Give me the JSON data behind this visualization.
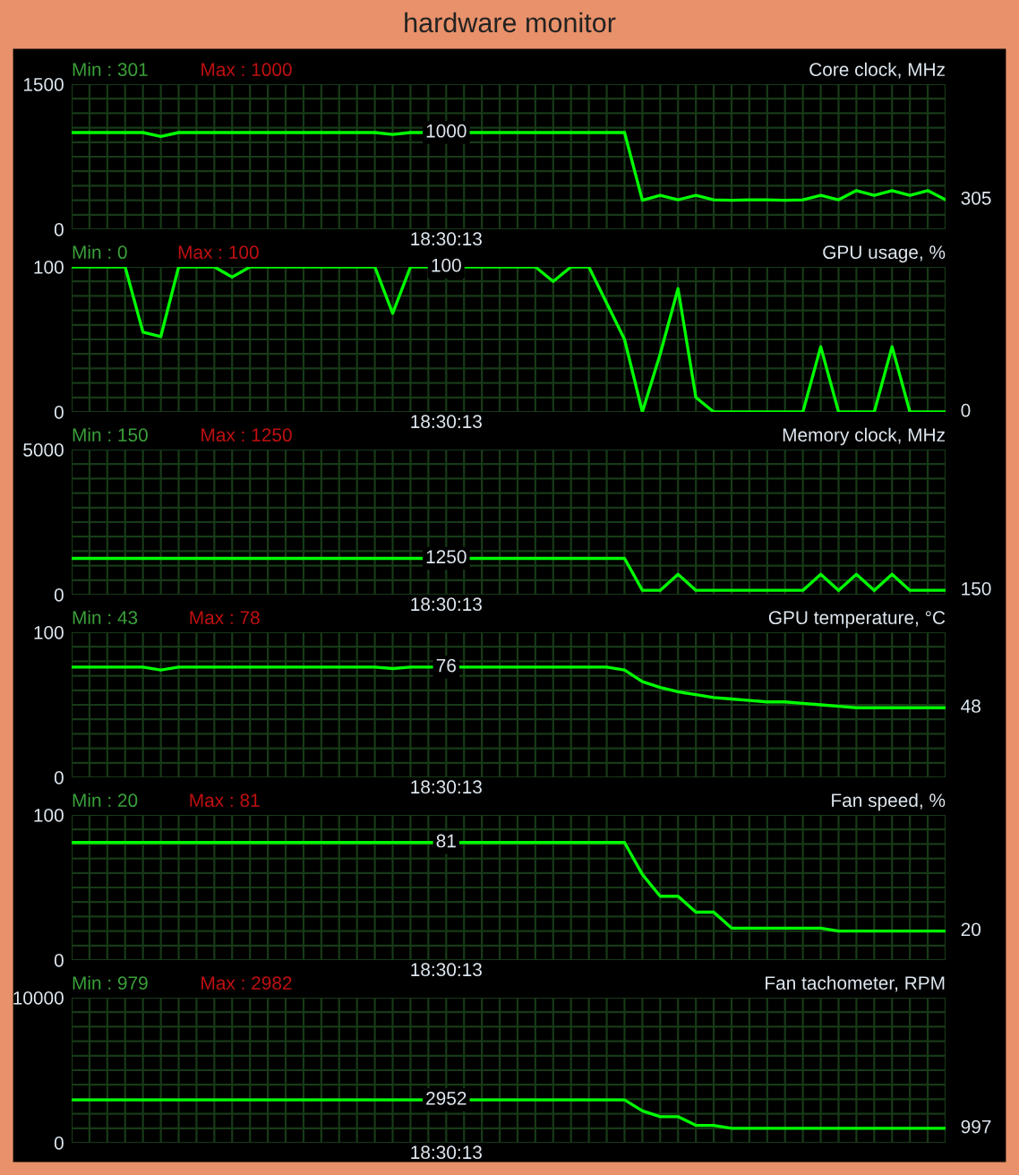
{
  "chart_data": [
    {
      "type": "line",
      "subtitle": "hardware monitor",
      "title": "Core clock, MHz",
      "annotations": [
        "Min : 301",
        "Max : 1000"
      ],
      "categories": [
        null,
        null,
        null,
        null,
        null,
        null,
        null,
        null,
        null,
        null,
        null,
        null,
        null,
        null,
        null,
        null,
        null,
        null,
        null,
        null,
        null,
        "18:30:13",
        null,
        null,
        null,
        null,
        null,
        null,
        null,
        null,
        null,
        null,
        null,
        null,
        null,
        null,
        null,
        null,
        null,
        null,
        null,
        null,
        null,
        null,
        null,
        null,
        null,
        null,
        null,
        null
      ],
      "series": [
        {
          "color": "#00ff00",
          "values": [
            1000,
            1000,
            1000,
            1000,
            1000,
            960,
            1000,
            1000,
            1000,
            1000,
            1000,
            1000,
            1000,
            1000,
            1000,
            1000,
            1000,
            1000,
            980,
            1000,
            1000,
            1000,
            1000,
            1000,
            1000,
            1000,
            1000,
            1000,
            1000,
            1000,
            1000,
            1000,
            300,
            350,
            305,
            350,
            305,
            300,
            305,
            305,
            300,
            305,
            350,
            305,
            400,
            350,
            400,
            350,
            400,
            305
          ],
          "value_labels": [
            null,
            null,
            null,
            null,
            null,
            null,
            null,
            null,
            null,
            null,
            null,
            null,
            null,
            null,
            null,
            null,
            null,
            null,
            null,
            null,
            null,
            "1000",
            null,
            null,
            null,
            null,
            null,
            null,
            null,
            null,
            null,
            null,
            null,
            null,
            null,
            null,
            null,
            null,
            null,
            null,
            null,
            null,
            null,
            null,
            null,
            null,
            null,
            null,
            null,
            "305"
          ]
        }
      ],
      "ylim": [
        0,
        1500
      ],
      "yticks": [
        0,
        {
          "value": 150,
          "label": null
        },
        {
          "value": 300,
          "label": null
        },
        {
          "value": 450,
          "label": null
        },
        {
          "value": 600,
          "label": null
        },
        {
          "value": 750,
          "label": null
        },
        {
          "value": 900,
          "label": null
        },
        {
          "value": 1050,
          "label": null
        },
        {
          "value": 1200,
          "label": null
        },
        {
          "value": 1350,
          "label": null
        },
        1500
      ],
      "grid": true
    },
    {
      "type": "line",
      "title": "GPU usage, %",
      "annotations": [
        "Min : 0",
        "Max : 100"
      ],
      "categories": [
        null,
        null,
        null,
        null,
        null,
        null,
        null,
        null,
        null,
        null,
        null,
        null,
        null,
        null,
        null,
        null,
        null,
        null,
        null,
        null,
        null,
        "18:30:13",
        null,
        null,
        null,
        null,
        null,
        null,
        null,
        null,
        null,
        null,
        null,
        null,
        null,
        null,
        null,
        null,
        null,
        null,
        null,
        null,
        null,
        null,
        null,
        null,
        null,
        null,
        null,
        null
      ],
      "series": [
        {
          "color": "#00ff00",
          "values": [
            100,
            100,
            100,
            100,
            55,
            52,
            100,
            100,
            100,
            93,
            100,
            100,
            100,
            100,
            100,
            100,
            100,
            100,
            68,
            100,
            100,
            100,
            100,
            100,
            100,
            100,
            100,
            90,
            100,
            100,
            75,
            50,
            0,
            40,
            85,
            10,
            0,
            0,
            0,
            0,
            0,
            0,
            45,
            0,
            0,
            0,
            45,
            0,
            0,
            0
          ],
          "value_labels": [
            null,
            null,
            null,
            null,
            null,
            null,
            null,
            null,
            null,
            null,
            null,
            null,
            null,
            null,
            null,
            null,
            null,
            null,
            null,
            null,
            null,
            "100",
            null,
            null,
            null,
            null,
            null,
            null,
            null,
            null,
            null,
            null,
            null,
            null,
            null,
            null,
            null,
            null,
            null,
            null,
            null,
            null,
            null,
            null,
            null,
            null,
            null,
            null,
            null,
            "0"
          ]
        }
      ],
      "ylim": [
        0,
        100
      ],
      "yticks": [
        0,
        {
          "value": 10,
          "label": null
        },
        {
          "value": 20,
          "label": null
        },
        {
          "value": 30,
          "label": null
        },
        {
          "value": 40,
          "label": null
        },
        {
          "value": 50,
          "label": null
        },
        {
          "value": 60,
          "label": null
        },
        {
          "value": 70,
          "label": null
        },
        {
          "value": 80,
          "label": null
        },
        {
          "value": 90,
          "label": null
        },
        100
      ],
      "grid": true
    },
    {
      "type": "line",
      "title": "Memory clock, MHz",
      "annotations": [
        "Min : 150",
        "Max : 1250"
      ],
      "categories": [
        null,
        null,
        null,
        null,
        null,
        null,
        null,
        null,
        null,
        null,
        null,
        null,
        null,
        null,
        null,
        null,
        null,
        null,
        null,
        null,
        null,
        "18:30:13",
        null,
        null,
        null,
        null,
        null,
        null,
        null,
        null,
        null,
        null,
        null,
        null,
        null,
        null,
        null,
        null,
        null,
        null,
        null,
        null,
        null,
        null,
        null,
        null,
        null,
        null,
        null,
        null
      ],
      "series": [
        {
          "color": "#00ff00",
          "values": [
            1250,
            1250,
            1250,
            1250,
            1250,
            1250,
            1250,
            1250,
            1250,
            1250,
            1250,
            1250,
            1250,
            1250,
            1250,
            1250,
            1250,
            1250,
            1250,
            1250,
            1250,
            1250,
            1250,
            1250,
            1250,
            1250,
            1250,
            1250,
            1250,
            1250,
            1250,
            1250,
            150,
            150,
            700,
            150,
            150,
            150,
            150,
            150,
            150,
            150,
            700,
            150,
            700,
            150,
            700,
            150,
            150,
            150
          ],
          "value_labels": [
            null,
            null,
            null,
            null,
            null,
            null,
            null,
            null,
            null,
            null,
            null,
            null,
            null,
            null,
            null,
            null,
            null,
            null,
            null,
            null,
            null,
            "1250",
            null,
            null,
            null,
            null,
            null,
            null,
            null,
            null,
            null,
            null,
            null,
            null,
            null,
            null,
            null,
            null,
            null,
            null,
            null,
            null,
            null,
            null,
            null,
            null,
            null,
            null,
            null,
            "150"
          ]
        }
      ],
      "ylim": [
        0,
        5000
      ],
      "yticks": [
        0,
        {
          "value": 500,
          "label": null
        },
        {
          "value": 1000,
          "label": null
        },
        {
          "value": 1500,
          "label": null
        },
        {
          "value": 2000,
          "label": null
        },
        {
          "value": 2500,
          "label": null
        },
        {
          "value": 3000,
          "label": null
        },
        {
          "value": 3500,
          "label": null
        },
        {
          "value": 4000,
          "label": null
        },
        {
          "value": 4500,
          "label": null
        },
        5000
      ],
      "grid": true
    },
    {
      "type": "line",
      "title": "GPU temperature, °C",
      "annotations": [
        "Min : 43",
        "Max : 78"
      ],
      "categories": [
        null,
        null,
        null,
        null,
        null,
        null,
        null,
        null,
        null,
        null,
        null,
        null,
        null,
        null,
        null,
        null,
        null,
        null,
        null,
        null,
        null,
        "18:30:13",
        null,
        null,
        null,
        null,
        null,
        null,
        null,
        null,
        null,
        null,
        null,
        null,
        null,
        null,
        null,
        null,
        null,
        null,
        null,
        null,
        null,
        null,
        null,
        null,
        null,
        null,
        null,
        null
      ],
      "series": [
        {
          "color": "#00ff00",
          "values": [
            76,
            76,
            76,
            76,
            76,
            74,
            76,
            76,
            76,
            76,
            76,
            76,
            76,
            76,
            76,
            76,
            76,
            76,
            75,
            76,
            76,
            76,
            76,
            76,
            76,
            76,
            76,
            76,
            76,
            76,
            76,
            74,
            66,
            62,
            59,
            57,
            55,
            54,
            53,
            52,
            52,
            51,
            50,
            49,
            48,
            48,
            48,
            48,
            48,
            48
          ],
          "value_labels": [
            null,
            null,
            null,
            null,
            null,
            null,
            null,
            null,
            null,
            null,
            null,
            null,
            null,
            null,
            null,
            null,
            null,
            null,
            null,
            null,
            null,
            "76",
            null,
            null,
            null,
            null,
            null,
            null,
            null,
            null,
            null,
            null,
            null,
            null,
            null,
            null,
            null,
            null,
            null,
            null,
            null,
            null,
            null,
            null,
            null,
            null,
            null,
            null,
            null,
            "48"
          ]
        }
      ],
      "ylim": [
        0,
        100
      ],
      "yticks": [
        0,
        {
          "value": 10,
          "label": null
        },
        {
          "value": 20,
          "label": null
        },
        {
          "value": 30,
          "label": null
        },
        {
          "value": 40,
          "label": null
        },
        {
          "value": 50,
          "label": null
        },
        {
          "value": 60,
          "label": null
        },
        {
          "value": 70,
          "label": null
        },
        {
          "value": 80,
          "label": null
        },
        {
          "value": 90,
          "label": null
        },
        100
      ],
      "grid": true
    },
    {
      "type": "line",
      "title": "Fan speed, %",
      "annotations": [
        "Min : 20",
        "Max : 81"
      ],
      "categories": [
        null,
        null,
        null,
        null,
        null,
        null,
        null,
        null,
        null,
        null,
        null,
        null,
        null,
        null,
        null,
        null,
        null,
        null,
        null,
        null,
        null,
        "18:30:13",
        null,
        null,
        null,
        null,
        null,
        null,
        null,
        null,
        null,
        null,
        null,
        null,
        null,
        null,
        null,
        null,
        null,
        null,
        null,
        null,
        null,
        null,
        null,
        null,
        null,
        null,
        null,
        null
      ],
      "series": [
        {
          "color": "#00ff00",
          "values": [
            81,
            81,
            81,
            81,
            81,
            81,
            81,
            81,
            81,
            81,
            81,
            81,
            81,
            81,
            81,
            81,
            81,
            81,
            81,
            81,
            81,
            81,
            81,
            81,
            81,
            81,
            81,
            81,
            81,
            81,
            81,
            81,
            59,
            44,
            44,
            33,
            33,
            22,
            22,
            22,
            22,
            22,
            22,
            20,
            20,
            20,
            20,
            20,
            20,
            20
          ],
          "value_labels": [
            null,
            null,
            null,
            null,
            null,
            null,
            null,
            null,
            null,
            null,
            null,
            null,
            null,
            null,
            null,
            null,
            null,
            null,
            null,
            null,
            null,
            "81",
            null,
            null,
            null,
            null,
            null,
            null,
            null,
            null,
            null,
            null,
            null,
            null,
            null,
            null,
            null,
            null,
            null,
            null,
            null,
            null,
            null,
            null,
            null,
            null,
            null,
            null,
            null,
            "20"
          ]
        }
      ],
      "ylim": [
        0,
        100
      ],
      "yticks": [
        0,
        {
          "value": 10,
          "label": null
        },
        {
          "value": 20,
          "label": null
        },
        {
          "value": 30,
          "label": null
        },
        {
          "value": 40,
          "label": null
        },
        {
          "value": 50,
          "label": null
        },
        {
          "value": 60,
          "label": null
        },
        {
          "value": 70,
          "label": null
        },
        {
          "value": 80,
          "label": null
        },
        {
          "value": 90,
          "label": null
        },
        100
      ],
      "grid": true
    },
    {
      "type": "line",
      "title": "Fan tachometer, RPM",
      "annotations": [
        "Min : 979",
        "Max : 2982"
      ],
      "categories": [
        null,
        null,
        null,
        null,
        null,
        null,
        null,
        null,
        null,
        null,
        null,
        null,
        null,
        null,
        null,
        null,
        null,
        null,
        null,
        null,
        null,
        "18:30:13",
        null,
        null,
        null,
        null,
        null,
        null,
        null,
        null,
        null,
        null,
        null,
        null,
        null,
        null,
        null,
        null,
        null,
        null,
        null,
        null,
        null,
        null,
        null,
        null,
        null,
        null,
        null,
        null
      ],
      "series": [
        {
          "color": "#00ff00",
          "values": [
            2952,
            2952,
            2952,
            2952,
            2952,
            2952,
            2952,
            2952,
            2952,
            2952,
            2952,
            2952,
            2952,
            2952,
            2952,
            2952,
            2952,
            2952,
            2952,
            2952,
            2952,
            2952,
            2952,
            2952,
            2952,
            2952,
            2952,
            2952,
            2952,
            2952,
            2952,
            2952,
            2200,
            1800,
            1800,
            1200,
            1200,
            997,
            997,
            997,
            997,
            997,
            997,
            997,
            997,
            997,
            997,
            997,
            997,
            997
          ],
          "value_labels": [
            null,
            null,
            null,
            null,
            null,
            null,
            null,
            null,
            null,
            null,
            null,
            null,
            null,
            null,
            null,
            null,
            null,
            null,
            null,
            null,
            null,
            "2952",
            null,
            null,
            null,
            null,
            null,
            null,
            null,
            null,
            null,
            null,
            null,
            null,
            null,
            null,
            null,
            null,
            null,
            null,
            null,
            null,
            null,
            null,
            null,
            null,
            null,
            null,
            null,
            "997"
          ]
        }
      ],
      "ylim": [
        0,
        10000
      ],
      "yticks": [
        0,
        {
          "value": 1000,
          "label": null
        },
        {
          "value": 2000,
          "label": null
        },
        {
          "value": 3000,
          "label": null
        },
        {
          "value": 4000,
          "label": null
        },
        {
          "value": 5000,
          "label": null
        },
        {
          "value": 6000,
          "label": null
        },
        {
          "value": 7000,
          "label": null
        },
        {
          "value": 8000,
          "label": null
        },
        {
          "value": 9000,
          "label": null
        },
        10000
      ],
      "grid": true
    }
  ]
}
